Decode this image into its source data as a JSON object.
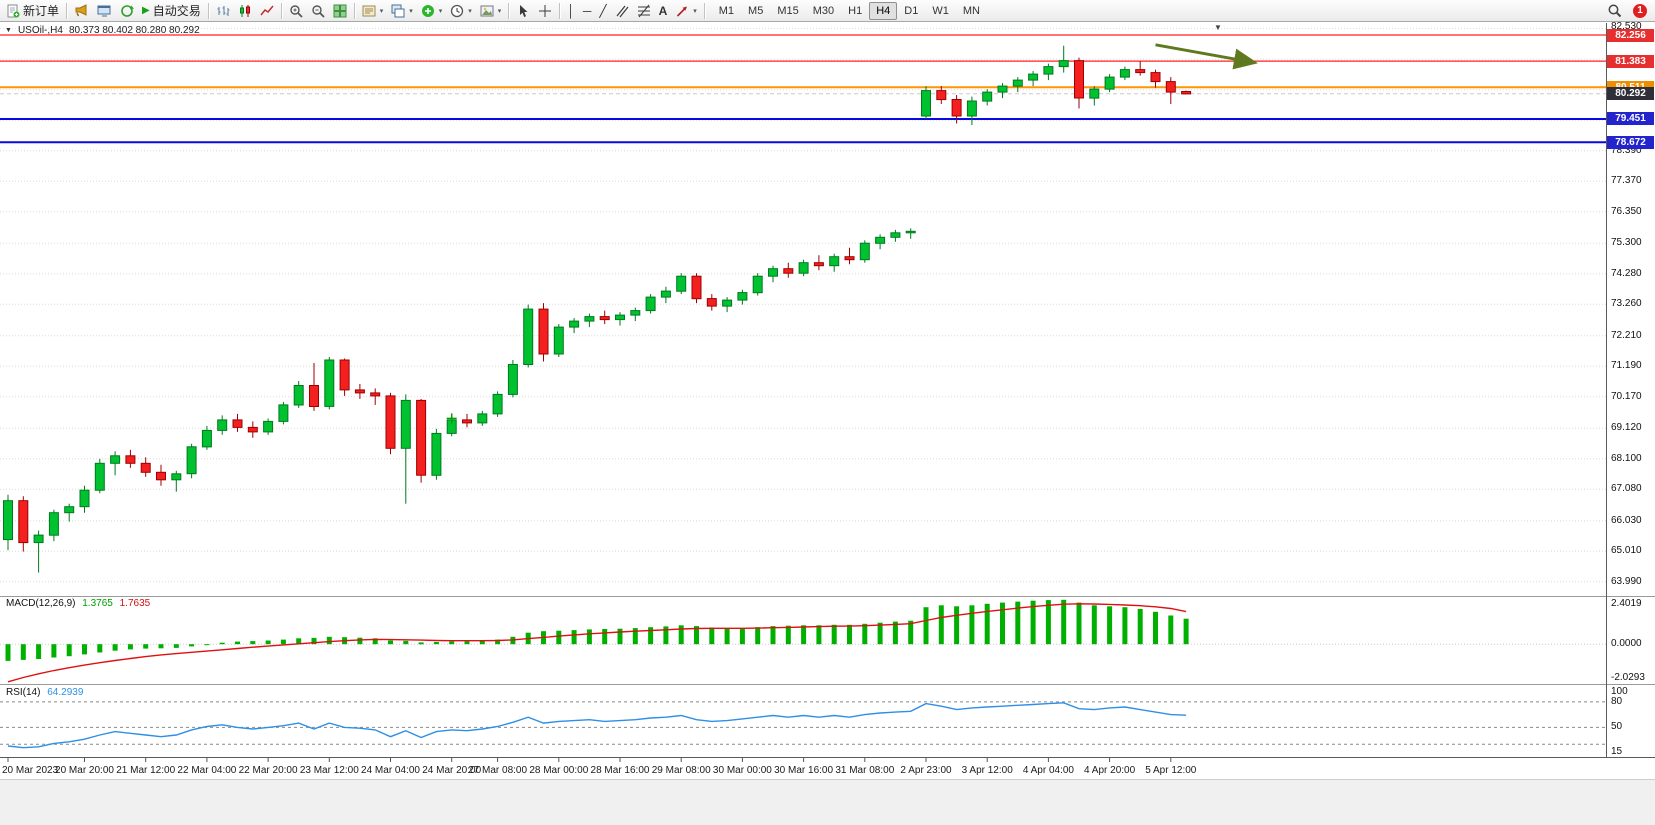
{
  "toolbar": {
    "new_order": "新订单",
    "auto_trading": "自动交易",
    "timeframes": [
      "M1",
      "M5",
      "M15",
      "M30",
      "H1",
      "H4",
      "D1",
      "W1",
      "MN"
    ],
    "active_timeframe": "H4",
    "notification_count": "1"
  },
  "icons": {
    "play": "▶",
    "dropdown": "▾",
    "collapse_arrow": "▼",
    "shift_marker": "▼",
    "vline": "│",
    "hline": "─",
    "trendline": "╱",
    "text_tool": "A"
  },
  "chart": {
    "symbol_period": "USOil-,H4",
    "ohlc_text": "80.373 80.402 80.280 80.292"
  },
  "chart_data": {
    "type": "candlestick",
    "symbol": "USOil-",
    "timeframe": "H4",
    "current": {
      "open": 80.373,
      "high": 80.402,
      "low": 80.28,
      "close": 80.292
    },
    "price_range": [
      63.517,
      82.657
    ],
    "grid_values": [
      82.47,
      81.45,
      80.43,
      79.41,
      78.39,
      77.37,
      76.35,
      75.3,
      74.28,
      73.26,
      72.21,
      71.19,
      70.17,
      69.12,
      68.1,
      67.08,
      66.03,
      65.01,
      63.99
    ],
    "price_labels": [
      "82.530",
      "78.390",
      "77.370",
      "76.350",
      "75.300",
      "74.280",
      "73.260",
      "72.210",
      "71.190",
      "70.170",
      "69.120",
      "68.100",
      "67.080",
      "66.030",
      "65.010",
      "63.990"
    ],
    "badges": [
      {
        "text": "82.256",
        "color": "#e63030"
      },
      {
        "text": "81.383",
        "color": "#e63030"
      },
      {
        "text": "80.511",
        "color": "#ef8e00"
      },
      {
        "text": "80.292",
        "color": "#2f2f3a"
      },
      {
        "text": "79.451",
        "color": "#2424cc"
      },
      {
        "text": "78.672",
        "color": "#2424cc"
      }
    ],
    "horizontal_lines": [
      {
        "price": 82.256,
        "color": "#ff2020",
        "width": 1.2
      },
      {
        "price": 81.383,
        "color": "#ff2020",
        "width": 1.2
      },
      {
        "price": 80.511,
        "color": "#ff9500",
        "width": 2
      },
      {
        "price": 79.451,
        "color": "#0a0ae0",
        "width": 2
      },
      {
        "price": 78.672,
        "color": "#0a0ae0",
        "width": 2
      }
    ],
    "candles": [
      [
        65.4,
        66.9,
        65.05,
        66.7
      ],
      [
        66.7,
        66.85,
        65.0,
        65.3
      ],
      [
        65.3,
        65.7,
        64.3,
        65.55
      ],
      [
        65.55,
        66.4,
        65.35,
        66.3
      ],
      [
        66.3,
        66.6,
        66.0,
        66.5
      ],
      [
        66.5,
        67.2,
        66.3,
        67.05
      ],
      [
        67.05,
        68.1,
        66.95,
        67.95
      ],
      [
        67.95,
        68.35,
        67.55,
        68.2
      ],
      [
        68.2,
        68.4,
        67.8,
        67.95
      ],
      [
        67.95,
        68.15,
        67.5,
        67.65
      ],
      [
        67.65,
        67.9,
        67.2,
        67.4
      ],
      [
        67.4,
        67.7,
        67.0,
        67.6
      ],
      [
        67.6,
        68.6,
        67.45,
        68.5
      ],
      [
        68.5,
        69.2,
        68.4,
        69.05
      ],
      [
        69.05,
        69.55,
        68.9,
        69.4
      ],
      [
        69.4,
        69.6,
        69.0,
        69.15
      ],
      [
        69.15,
        69.35,
        68.8,
        69.0
      ],
      [
        69.0,
        69.45,
        68.9,
        69.35
      ],
      [
        69.35,
        70.0,
        69.25,
        69.9
      ],
      [
        69.9,
        70.7,
        69.8,
        70.55
      ],
      [
        70.55,
        71.3,
        69.7,
        69.85
      ],
      [
        69.85,
        71.5,
        69.75,
        71.4
      ],
      [
        71.4,
        71.45,
        70.2,
        70.4
      ],
      [
        70.4,
        70.6,
        70.1,
        70.3
      ],
      [
        70.3,
        70.45,
        69.9,
        70.2
      ],
      [
        70.2,
        70.3,
        68.25,
        68.45
      ],
      [
        68.45,
        70.25,
        66.6,
        70.05
      ],
      [
        70.05,
        70.1,
        67.3,
        67.55
      ],
      [
        67.55,
        69.1,
        67.4,
        68.95
      ],
      [
        68.95,
        69.55,
        68.85,
        69.4
      ],
      [
        69.4,
        69.6,
        69.15,
        69.3
      ],
      [
        69.3,
        69.7,
        69.2,
        69.6
      ],
      [
        69.6,
        70.35,
        69.5,
        70.25
      ],
      [
        70.25,
        71.4,
        70.15,
        71.25
      ],
      [
        71.25,
        73.25,
        71.15,
        73.1
      ],
      [
        73.1,
        73.3,
        71.35,
        71.6
      ],
      [
        71.6,
        72.6,
        71.5,
        72.5
      ],
      [
        72.5,
        72.8,
        72.3,
        72.7
      ],
      [
        72.7,
        72.95,
        72.5,
        72.85
      ],
      [
        72.85,
        73.05,
        72.6,
        72.75
      ],
      [
        72.75,
        73.0,
        72.55,
        72.9
      ],
      [
        72.9,
        73.15,
        72.7,
        73.05
      ],
      [
        73.05,
        73.6,
        72.95,
        73.5
      ],
      [
        73.5,
        73.85,
        73.3,
        73.7
      ],
      [
        73.7,
        74.3,
        73.6,
        74.2
      ],
      [
        74.2,
        74.3,
        73.3,
        73.45
      ],
      [
        73.45,
        73.6,
        73.05,
        73.2
      ],
      [
        73.2,
        73.5,
        73.0,
        73.4
      ],
      [
        73.4,
        73.75,
        73.25,
        73.65
      ],
      [
        73.65,
        74.3,
        73.55,
        74.2
      ],
      [
        74.2,
        74.55,
        74.0,
        74.45
      ],
      [
        74.45,
        74.65,
        74.15,
        74.3
      ],
      [
        74.3,
        74.75,
        74.2,
        74.65
      ],
      [
        74.65,
        74.9,
        74.4,
        74.55
      ],
      [
        74.55,
        74.95,
        74.35,
        74.85
      ],
      [
        74.85,
        75.15,
        74.6,
        74.75
      ],
      [
        74.75,
        75.4,
        74.65,
        75.3
      ],
      [
        75.3,
        75.6,
        75.1,
        75.5
      ],
      [
        75.5,
        75.75,
        75.35,
        75.65
      ],
      [
        75.65,
        75.8,
        75.45,
        75.7
      ],
      [
        79.55,
        80.55,
        79.45,
        80.4
      ],
      [
        80.4,
        80.55,
        79.95,
        80.1
      ],
      [
        80.1,
        80.25,
        79.3,
        79.55
      ],
      [
        79.55,
        80.2,
        79.25,
        80.05
      ],
      [
        80.05,
        80.45,
        79.9,
        80.35
      ],
      [
        80.35,
        80.65,
        80.15,
        80.55
      ],
      [
        80.55,
        80.85,
        80.35,
        80.75
      ],
      [
        80.75,
        81.05,
        80.55,
        80.95
      ],
      [
        80.95,
        81.3,
        80.75,
        81.2
      ],
      [
        81.2,
        81.9,
        81.0,
        81.4
      ],
      [
        81.4,
        81.5,
        79.8,
        80.15
      ],
      [
        80.15,
        80.55,
        79.9,
        80.45
      ],
      [
        80.45,
        80.95,
        80.35,
        80.85
      ],
      [
        80.85,
        81.2,
        80.75,
        81.1
      ],
      [
        81.1,
        81.38,
        80.9,
        81.0
      ],
      [
        81.0,
        81.1,
        80.5,
        80.7
      ],
      [
        80.7,
        80.85,
        79.95,
        80.35
      ],
      [
        80.37,
        80.4,
        80.28,
        80.29
      ]
    ],
    "time_labels": [
      {
        "i": 0,
        "t": "20 Mar 2023"
      },
      {
        "i": 5,
        "t": "20 Mar 20:00"
      },
      {
        "i": 9,
        "t": "21 Mar 12:00"
      },
      {
        "i": 13,
        "t": "22 Mar 04:00"
      },
      {
        "i": 17,
        "t": "22 Mar 20:00"
      },
      {
        "i": 21,
        "t": "23 Mar 12:00"
      },
      {
        "i": 25,
        "t": "24 Mar 04:00"
      },
      {
        "i": 29,
        "t": "24 Mar 20:00"
      },
      {
        "i": 32,
        "t": "27 Mar 08:00"
      },
      {
        "i": 36,
        "t": "28 Mar 00:00"
      },
      {
        "i": 40,
        "t": "28 Mar 16:00"
      },
      {
        "i": 44,
        "t": "29 Mar 08:00"
      },
      {
        "i": 48,
        "t": "30 Mar 00:00"
      },
      {
        "i": 52,
        "t": "30 Mar 16:00"
      },
      {
        "i": 56,
        "t": "31 Mar 08:00"
      },
      {
        "i": 60,
        "t": "2 Apr 23:00"
      },
      {
        "i": 64,
        "t": "3 Apr 12:00"
      },
      {
        "i": 68,
        "t": "4 Apr 04:00"
      },
      {
        "i": 72,
        "t": "4 Apr 20:00"
      },
      {
        "i": 76,
        "t": "5 Apr 12:00"
      }
    ],
    "macd": {
      "name": "MACD(12,26,9)",
      "value_main": "1.3765",
      "value_signal": "1.7635",
      "scale": [
        "2.4019",
        "0.0000",
        "-2.0293"
      ],
      "range": [
        -2.15,
        2.55
      ],
      "hist": [
        -0.9,
        -0.85,
        -0.8,
        -0.72,
        -0.65,
        -0.55,
        -0.45,
        -0.35,
        -0.28,
        -0.24,
        -0.22,
        -0.2,
        -0.12,
        -0.02,
        0.08,
        0.14,
        0.17,
        0.2,
        0.25,
        0.32,
        0.34,
        0.4,
        0.38,
        0.35,
        0.32,
        0.2,
        0.18,
        0.1,
        0.12,
        0.15,
        0.16,
        0.18,
        0.25,
        0.4,
        0.62,
        0.7,
        0.73,
        0.76,
        0.8,
        0.82,
        0.84,
        0.87,
        0.92,
        0.96,
        1.02,
        0.98,
        0.9,
        0.85,
        0.86,
        0.92,
        0.98,
        1.0,
        1.02,
        1.02,
        1.05,
        1.05,
        1.1,
        1.16,
        1.22,
        1.27,
        2.0,
        2.1,
        2.05,
        2.1,
        2.18,
        2.25,
        2.3,
        2.35,
        2.38,
        2.4,
        2.25,
        2.1,
        2.05,
        2.0,
        1.9,
        1.75,
        1.55,
        1.38
      ],
      "signal": [
        -2.03,
        -1.8,
        -1.6,
        -1.42,
        -1.27,
        -1.13,
        -1.0,
        -0.88,
        -0.77,
        -0.67,
        -0.58,
        -0.51,
        -0.44,
        -0.37,
        -0.3,
        -0.23,
        -0.16,
        -0.1,
        -0.04,
        0.02,
        0.08,
        0.14,
        0.19,
        0.23,
        0.26,
        0.25,
        0.24,
        0.22,
        0.2,
        0.19,
        0.19,
        0.19,
        0.2,
        0.23,
        0.3,
        0.37,
        0.44,
        0.5,
        0.56,
        0.61,
        0.66,
        0.7,
        0.74,
        0.78,
        0.82,
        0.85,
        0.86,
        0.86,
        0.86,
        0.87,
        0.89,
        0.91,
        0.93,
        0.95,
        0.97,
        0.98,
        1.0,
        1.03,
        1.07,
        1.11,
        1.28,
        1.44,
        1.56,
        1.67,
        1.77,
        1.86,
        1.95,
        2.03,
        2.1,
        2.16,
        2.18,
        2.17,
        2.15,
        2.12,
        2.08,
        2.02,
        1.93,
        1.76
      ]
    },
    "rsi": {
      "name": "RSI(14)",
      "value": "64.2939",
      "scale": [
        "100",
        "80",
        "50",
        "15"
      ],
      "range": [
        15,
        100
      ],
      "dashed_levels": [
        80,
        50,
        30
      ],
      "values": [
        28,
        26,
        27,
        31,
        33,
        36,
        41,
        45,
        43,
        41,
        39,
        41,
        47,
        51,
        53,
        50,
        48,
        50,
        52,
        55,
        48,
        55,
        50,
        49,
        47,
        39,
        46,
        38,
        45,
        47,
        46,
        48,
        51,
        56,
        62,
        55,
        57,
        58,
        59,
        57,
        58,
        59,
        61,
        62,
        64,
        59,
        57,
        58,
        60,
        62,
        64,
        62,
        64,
        62,
        64,
        62,
        65,
        67,
        68,
        69,
        78,
        75,
        71,
        73,
        74,
        75,
        76,
        77,
        78,
        79,
        72,
        71,
        73,
        74,
        71,
        68,
        65,
        64.29
      ]
    },
    "objects": {
      "arrow": {
        "from_candle": 75,
        "from_price": 81.93,
        "to_candle": 81.5,
        "to_price": 81.33,
        "color": "#5f7a1e",
        "width": 3
      },
      "plus_marker": {
        "candle": 29,
        "price": 69.45,
        "color": "#00a000"
      }
    },
    "colors": {
      "bull": "#00c230",
      "bull_border": "#007a1e",
      "bear": "#f42020",
      "bear_border": "#9e0000",
      "macd_hist": "#00b000",
      "macd_signal": "#e01010",
      "rsi_line": "#2e8fe8",
      "grid": "#dcdcdc"
    }
  }
}
